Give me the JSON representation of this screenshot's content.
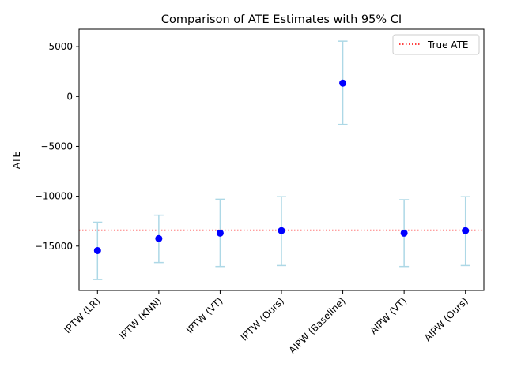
{
  "chart_data": {
    "type": "scatter",
    "title": "Comparison of ATE Estimates with 95% CI",
    "xlabel": "",
    "ylabel": "ATE",
    "categories": [
      "IPTW (LR)",
      "IPTW (KNN)",
      "IPTW (VT)",
      "IPTW (Ours)",
      "AIPW (Baseline)",
      "AIPW (VT)",
      "AIPW (Ours)"
    ],
    "series": [
      {
        "values": [
          -15450,
          -14250,
          -13700,
          -13450,
          1350,
          -13700,
          -13450
        ],
        "ci_lower": [
          -18350,
          -16650,
          -17050,
          -16950,
          -2800,
          -17050,
          -16950
        ],
        "ci_upper": [
          -12600,
          -11900,
          -10300,
          -10050,
          5550,
          -10350,
          -10050
        ]
      }
    ],
    "reference_line": {
      "label": "True ATE",
      "value": -13400
    },
    "yticks": [
      5000,
      0,
      -5000,
      -10000,
      -15000
    ],
    "ytick_labels": [
      "5000",
      "0",
      "−5000",
      "−10000",
      "−15000"
    ],
    "ylim": [
      -19450,
      6750
    ],
    "legend_position": "top-right",
    "grid": false,
    "colors": {
      "point": "#0000ff",
      "errorbar": "#add8e6",
      "reference": "#ff0000",
      "axis": "#000000"
    }
  }
}
